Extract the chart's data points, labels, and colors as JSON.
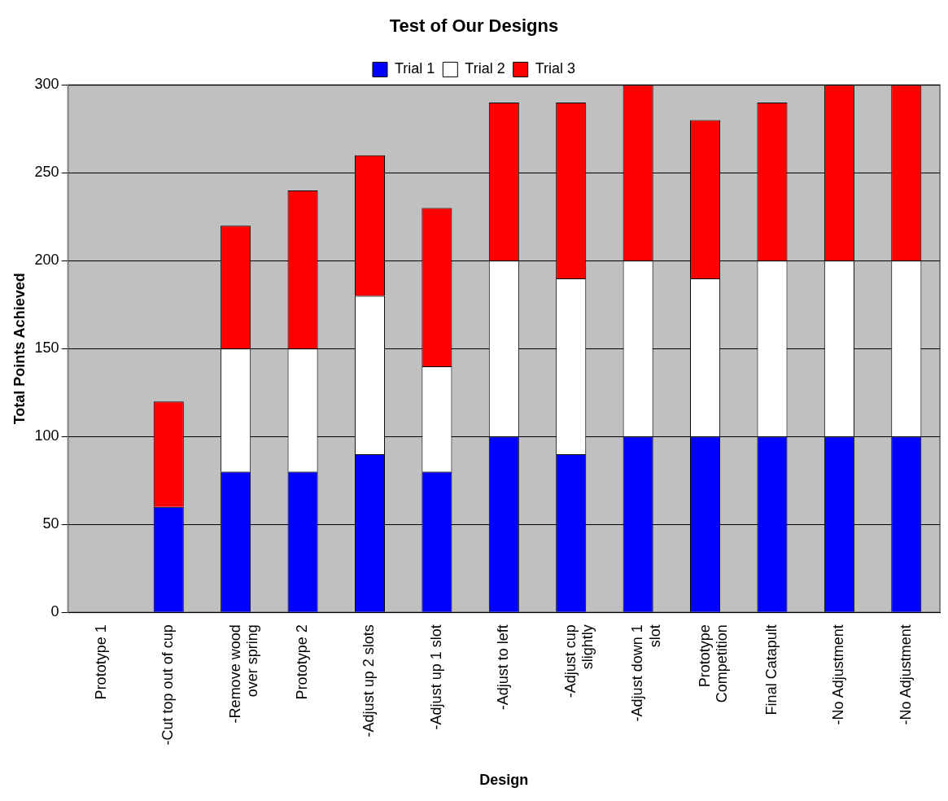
{
  "chart_data": {
    "type": "bar",
    "title": "Test of Our Designs",
    "xlabel": "Design",
    "ylabel": "Total Points Achieved",
    "categories": [
      "Prototype 1",
      "-Cut top out of cup",
      "-Remove wood over spring",
      "Prototype 2",
      "-Adjust up 2 slots",
      "-Adjust up 1 slot",
      "-Adjust to left",
      "-Adjust cup slightly",
      "-Adjust down 1 slot",
      "Prototype Competition",
      "Final Catapult",
      "-No Adjustment",
      "-No Adjustment"
    ],
    "series": [
      {
        "name": "Trial 1",
        "color": "#0000ff",
        "values": [
          0,
          60,
          80,
          80,
          90,
          80,
          100,
          90,
          100,
          100,
          100,
          100,
          100
        ]
      },
      {
        "name": "Trial 2",
        "color": "#ffffff",
        "values": [
          0,
          0,
          70,
          70,
          90,
          60,
          100,
          100,
          100,
          90,
          100,
          100,
          100
        ]
      },
      {
        "name": "Trial 3",
        "color": "#ff0000",
        "values": [
          0,
          60,
          70,
          90,
          80,
          90,
          90,
          100,
          100,
          90,
          90,
          100,
          100
        ]
      }
    ],
    "stacked": true,
    "ylim": [
      0,
      300
    ],
    "yticks": [
      0,
      50,
      100,
      150,
      200,
      250,
      300
    ],
    "grid": "y",
    "legend": "top"
  }
}
